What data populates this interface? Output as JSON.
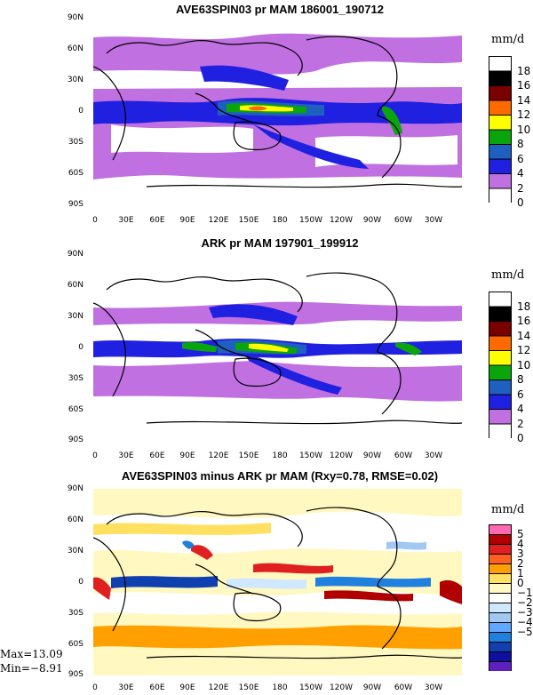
{
  "panels": [
    {
      "title": "AVE63SPIN03 pr MAM 186001_190712",
      "units": "mm/d",
      "colorbar_labels": [
        "18",
        "16",
        "14",
        "12",
        "10",
        "8",
        "6",
        "4",
        "2",
        "0"
      ],
      "colorbar_colors": [
        "#ffffff",
        "#000000",
        "#7a0000",
        "#ff6a00",
        "#ffff00",
        "#0aa50a",
        "#1e5fc0",
        "#2020e0",
        "#c070e0",
        "#ffffff"
      ]
    },
    {
      "title": "ARK pr MAM 197901_199912",
      "units": "mm/d",
      "colorbar_labels": [
        "18",
        "16",
        "14",
        "12",
        "10",
        "8",
        "6",
        "4",
        "2",
        "0"
      ],
      "colorbar_colors": [
        "#ffffff",
        "#000000",
        "#7a0000",
        "#ff6a00",
        "#ffff00",
        "#0aa50a",
        "#1e5fc0",
        "#2020e0",
        "#c070e0",
        "#ffffff"
      ]
    },
    {
      "title": "AVE63SPIN03 minus ARK pr MAM (Rxy=0.78, RMSE=0.02)",
      "units": "mm/d",
      "colorbar_labels": [
        "5",
        "4",
        "3",
        "2",
        "1",
        "0",
        "−1",
        "−2",
        "−3",
        "−4",
        "−5"
      ],
      "colorbar_colors": [
        "#ff69b4",
        "#b00000",
        "#e02020",
        "#ff6020",
        "#ffa000",
        "#ffe060",
        "#fff8c0",
        "#ffffff",
        "#d0e8ff",
        "#a0c8f0",
        "#60a8ff",
        "#2080e0",
        "#1040b0",
        "#1010a0",
        "#6020c0"
      ]
    }
  ],
  "lat_labels": [
    "90N",
    "60N",
    "30N",
    "0",
    "30S",
    "60S",
    "90S"
  ],
  "lon_labels": [
    "0",
    "30E",
    "60E",
    "90E",
    "120E",
    "150E",
    "180",
    "150W",
    "120W",
    "90W",
    "60W",
    "30W"
  ],
  "stats": {
    "max": "Max=13.09",
    "min": "Min=−8.91"
  }
}
